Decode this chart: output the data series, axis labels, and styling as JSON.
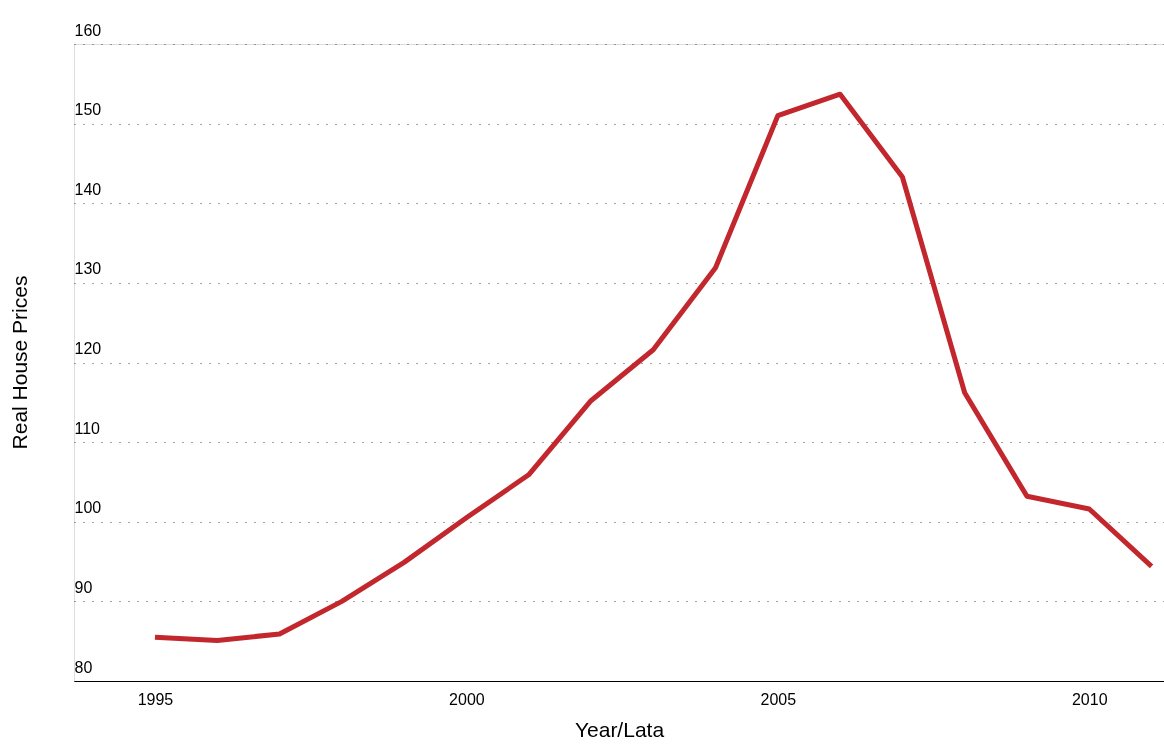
{
  "chart_data": {
    "type": "line",
    "xlabel": "Year/Lata",
    "ylabel": "Real House Prices",
    "x": [
      1995,
      1996,
      1997,
      1998,
      1999,
      2000,
      2001,
      2002,
      2003,
      2004,
      2005,
      2006,
      2007,
      2008,
      2009,
      2010,
      2011
    ],
    "series": [
      {
        "color": "#c1272d",
        "values": [
          85.5,
          85.1,
          85.9,
          90.0,
          94.9,
          100.5,
          105.9,
          115.2,
          121.6,
          131.9,
          151.0,
          153.7,
          143.3,
          116.2,
          103.2,
          101.6,
          94.4
        ]
      }
    ],
    "xlim": [
      1993.7,
      2011.2
    ],
    "xticks": [
      1995,
      2000,
      2005,
      2010
    ],
    "ylim": [
      80,
      160
    ],
    "yticks": [
      80,
      90,
      100,
      110,
      120,
      130,
      140,
      150,
      160
    ],
    "grid": "y",
    "marker": "none",
    "line_style": "solid"
  }
}
